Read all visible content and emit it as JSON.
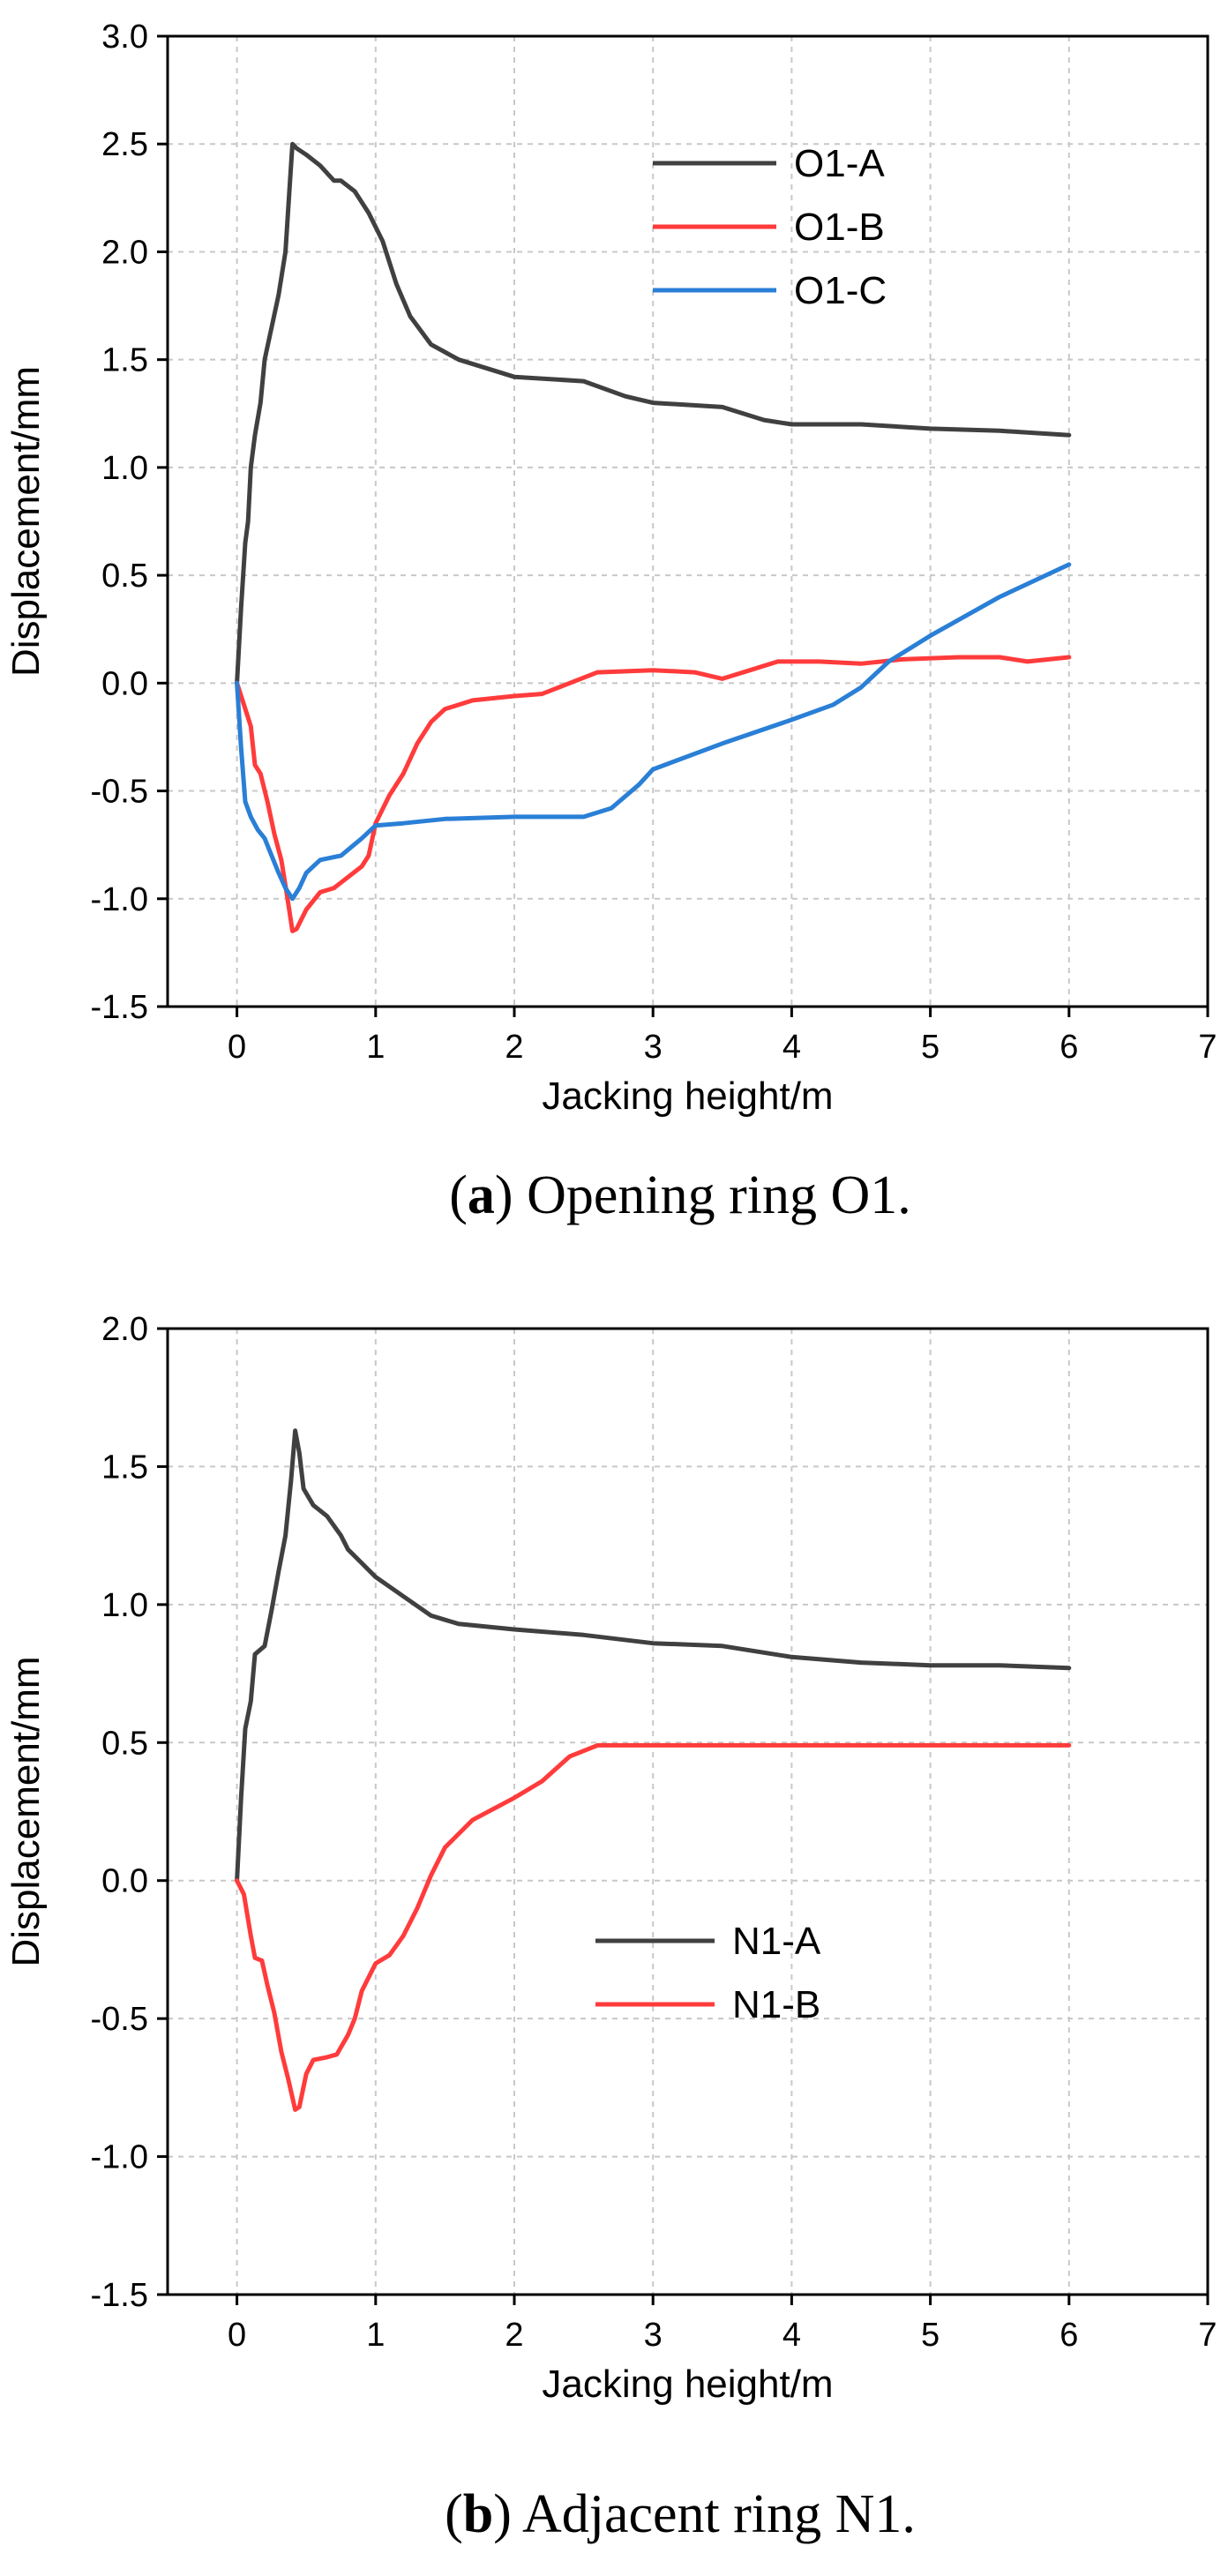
{
  "colors": {
    "A": "#404040",
    "B": "#ff3b3b",
    "C": "#2a7fd6",
    "grid": "#c8c8c8",
    "axis": "#000000"
  },
  "chart_data": [
    {
      "type": "line",
      "caption": {
        "label": "a",
        "open": "(",
        "close": ")",
        "text": " Opening ring O1."
      },
      "xlabel": "Jacking height/m",
      "ylabel": "Displacement/mm",
      "xlim": [
        -0.5,
        7
      ],
      "ylim": [
        -1.5,
        3.0
      ],
      "xticks": [
        0,
        1,
        2,
        3,
        4,
        5,
        6,
        7
      ],
      "yticks": [
        -1.5,
        -1.0,
        -0.5,
        0.0,
        0.5,
        1.0,
        1.5,
        2.0,
        2.5,
        3.0
      ],
      "ytick_labels": [
        "-1.5",
        "-1.0",
        "-0.5",
        "0.0",
        "0.5",
        "1.0",
        "1.5",
        "2.0",
        "2.5",
        "3.0"
      ],
      "grid": true,
      "legend_position": "top-center",
      "series": [
        {
          "name": "O1-A",
          "color_key": "A",
          "points": [
            [
              0,
              0
            ],
            [
              0.03,
              0.35
            ],
            [
              0.06,
              0.65
            ],
            [
              0.08,
              0.75
            ],
            [
              0.1,
              1.0
            ],
            [
              0.13,
              1.15
            ],
            [
              0.17,
              1.3
            ],
            [
              0.2,
              1.5
            ],
            [
              0.25,
              1.65
            ],
            [
              0.3,
              1.8
            ],
            [
              0.35,
              2.0
            ],
            [
              0.38,
              2.3
            ],
            [
              0.4,
              2.5
            ],
            [
              0.43,
              2.48
            ],
            [
              0.5,
              2.45
            ],
            [
              0.6,
              2.4
            ],
            [
              0.7,
              2.33
            ],
            [
              0.75,
              2.33
            ],
            [
              0.85,
              2.28
            ],
            [
              0.95,
              2.18
            ],
            [
              1.05,
              2.05
            ],
            [
              1.15,
              1.85
            ],
            [
              1.25,
              1.7
            ],
            [
              1.4,
              1.57
            ],
            [
              1.6,
              1.5
            ],
            [
              2.0,
              1.42
            ],
            [
              2.5,
              1.4
            ],
            [
              2.8,
              1.33
            ],
            [
              3.0,
              1.3
            ],
            [
              3.5,
              1.28
            ],
            [
              3.8,
              1.22
            ],
            [
              4.0,
              1.2
            ],
            [
              4.5,
              1.2
            ],
            [
              5.0,
              1.18
            ],
            [
              5.5,
              1.17
            ],
            [
              6.0,
              1.15
            ]
          ]
        },
        {
          "name": "O1-B",
          "color_key": "B",
          "points": [
            [
              0,
              0
            ],
            [
              0.05,
              -0.1
            ],
            [
              0.1,
              -0.2
            ],
            [
              0.13,
              -0.38
            ],
            [
              0.17,
              -0.42
            ],
            [
              0.22,
              -0.55
            ],
            [
              0.27,
              -0.7
            ],
            [
              0.32,
              -0.82
            ],
            [
              0.36,
              -0.98
            ],
            [
              0.4,
              -1.15
            ],
            [
              0.43,
              -1.14
            ],
            [
              0.5,
              -1.05
            ],
            [
              0.6,
              -0.97
            ],
            [
              0.7,
              -0.95
            ],
            [
              0.8,
              -0.9
            ],
            [
              0.9,
              -0.85
            ],
            [
              0.95,
              -0.8
            ],
            [
              1.0,
              -0.65
            ],
            [
              1.1,
              -0.52
            ],
            [
              1.2,
              -0.42
            ],
            [
              1.3,
              -0.28
            ],
            [
              1.4,
              -0.18
            ],
            [
              1.5,
              -0.12
            ],
            [
              1.7,
              -0.08
            ],
            [
              2.0,
              -0.06
            ],
            [
              2.2,
              -0.05
            ],
            [
              2.4,
              0.0
            ],
            [
              2.6,
              0.05
            ],
            [
              3.0,
              0.06
            ],
            [
              3.3,
              0.05
            ],
            [
              3.5,
              0.02
            ],
            [
              3.7,
              0.06
            ],
            [
              3.9,
              0.1
            ],
            [
              4.2,
              0.1
            ],
            [
              4.5,
              0.09
            ],
            [
              4.8,
              0.11
            ],
            [
              5.2,
              0.12
            ],
            [
              5.5,
              0.12
            ],
            [
              5.7,
              0.1
            ],
            [
              6.0,
              0.12
            ]
          ]
        },
        {
          "name": "O1-C",
          "color_key": "C",
          "points": [
            [
              0,
              0
            ],
            [
              0.03,
              -0.3
            ],
            [
              0.06,
              -0.55
            ],
            [
              0.1,
              -0.62
            ],
            [
              0.15,
              -0.68
            ],
            [
              0.2,
              -0.72
            ],
            [
              0.25,
              -0.8
            ],
            [
              0.3,
              -0.88
            ],
            [
              0.35,
              -0.95
            ],
            [
              0.4,
              -1.0
            ],
            [
              0.45,
              -0.95
            ],
            [
              0.5,
              -0.88
            ],
            [
              0.6,
              -0.82
            ],
            [
              0.75,
              -0.8
            ],
            [
              0.9,
              -0.72
            ],
            [
              1.0,
              -0.66
            ],
            [
              1.2,
              -0.65
            ],
            [
              1.5,
              -0.63
            ],
            [
              2.0,
              -0.62
            ],
            [
              2.5,
              -0.62
            ],
            [
              2.7,
              -0.58
            ],
            [
              2.9,
              -0.47
            ],
            [
              3.0,
              -0.4
            ],
            [
              3.5,
              -0.28
            ],
            [
              4.0,
              -0.17
            ],
            [
              4.3,
              -0.1
            ],
            [
              4.5,
              -0.02
            ],
            [
              4.7,
              0.1
            ],
            [
              5.0,
              0.22
            ],
            [
              5.5,
              0.4
            ],
            [
              6.0,
              0.55
            ]
          ]
        }
      ]
    },
    {
      "type": "line",
      "caption": {
        "label": "b",
        "open": "(",
        "close": ")",
        "text": " Adjacent ring N1."
      },
      "xlabel": "Jacking height/m",
      "ylabel": "Displacement/mm",
      "xlim": [
        -0.5,
        7
      ],
      "ylim": [
        -1.5,
        2.0
      ],
      "xticks": [
        0,
        1,
        2,
        3,
        4,
        5,
        6,
        7
      ],
      "yticks": [
        -1.5,
        -1.0,
        -0.5,
        0.0,
        0.5,
        1.0,
        1.5,
        2.0
      ],
      "ytick_labels": [
        "-1.5",
        "-1.0",
        "-0.5",
        "0.0",
        "0.5",
        "1.0",
        "1.5",
        "2.0"
      ],
      "grid": true,
      "legend_position": "center",
      "series": [
        {
          "name": "N1-A",
          "color_key": "A",
          "points": [
            [
              0,
              0
            ],
            [
              0.03,
              0.3
            ],
            [
              0.06,
              0.55
            ],
            [
              0.1,
              0.65
            ],
            [
              0.13,
              0.82
            ],
            [
              0.2,
              0.85
            ],
            [
              0.25,
              0.98
            ],
            [
              0.3,
              1.12
            ],
            [
              0.35,
              1.25
            ],
            [
              0.39,
              1.45
            ],
            [
              0.42,
              1.63
            ],
            [
              0.45,
              1.55
            ],
            [
              0.48,
              1.42
            ],
            [
              0.55,
              1.36
            ],
            [
              0.65,
              1.32
            ],
            [
              0.75,
              1.25
            ],
            [
              0.8,
              1.2
            ],
            [
              0.9,
              1.15
            ],
            [
              1.0,
              1.1
            ],
            [
              1.2,
              1.03
            ],
            [
              1.4,
              0.96
            ],
            [
              1.6,
              0.93
            ],
            [
              2.0,
              0.91
            ],
            [
              2.5,
              0.89
            ],
            [
              3.0,
              0.86
            ],
            [
              3.5,
              0.85
            ],
            [
              4.0,
              0.81
            ],
            [
              4.5,
              0.79
            ],
            [
              5.0,
              0.78
            ],
            [
              5.5,
              0.78
            ],
            [
              6.0,
              0.77
            ]
          ]
        },
        {
          "name": "N1-B",
          "color_key": "B",
          "points": [
            [
              0,
              0
            ],
            [
              0.05,
              -0.05
            ],
            [
              0.1,
              -0.2
            ],
            [
              0.13,
              -0.28
            ],
            [
              0.18,
              -0.29
            ],
            [
              0.22,
              -0.38
            ],
            [
              0.27,
              -0.48
            ],
            [
              0.32,
              -0.62
            ],
            [
              0.37,
              -0.72
            ],
            [
              0.42,
              -0.83
            ],
            [
              0.45,
              -0.82
            ],
            [
              0.5,
              -0.7
            ],
            [
              0.55,
              -0.65
            ],
            [
              0.65,
              -0.64
            ],
            [
              0.72,
              -0.63
            ],
            [
              0.8,
              -0.56
            ],
            [
              0.85,
              -0.5
            ],
            [
              0.9,
              -0.4
            ],
            [
              1.0,
              -0.3
            ],
            [
              1.1,
              -0.27
            ],
            [
              1.2,
              -0.2
            ],
            [
              1.3,
              -0.1
            ],
            [
              1.4,
              0.02
            ],
            [
              1.5,
              0.12
            ],
            [
              1.7,
              0.22
            ],
            [
              2.0,
              0.3
            ],
            [
              2.2,
              0.36
            ],
            [
              2.4,
              0.45
            ],
            [
              2.6,
              0.49
            ],
            [
              3.0,
              0.49
            ],
            [
              4.0,
              0.49
            ],
            [
              5.0,
              0.49
            ],
            [
              6.0,
              0.49
            ]
          ]
        }
      ]
    }
  ]
}
